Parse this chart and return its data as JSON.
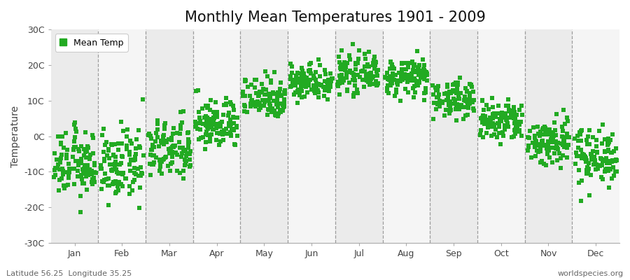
{
  "title": "Monthly Mean Temperatures 1901 - 2009",
  "ylabel": "Temperature",
  "dot_color": "#22AA22",
  "background_color": "#FFFFFF",
  "band_color_odd": "#EBEBEB",
  "band_color_even": "#F5F5F5",
  "ylim": [
    -30,
    30
  ],
  "ytick_labels": [
    "-30C",
    "-20C",
    "-10C",
    "0C",
    "10C",
    "20C",
    "30C"
  ],
  "ytick_values": [
    -30,
    -20,
    -10,
    0,
    10,
    20,
    30
  ],
  "month_labels": [
    "Jan",
    "Feb",
    "Mar",
    "Apr",
    "May",
    "Jun",
    "Jul",
    "Aug",
    "Sep",
    "Oct",
    "Nov",
    "Dec"
  ],
  "month_means": [
    -8.0,
    -8.5,
    -4.0,
    3.5,
    11.0,
    15.5,
    17.5,
    16.5,
    10.5,
    4.0,
    -1.5,
    -5.5
  ],
  "month_stds": [
    4.5,
    4.8,
    4.2,
    3.5,
    3.0,
    2.5,
    2.5,
    2.5,
    2.5,
    3.0,
    3.5,
    4.0
  ],
  "n_years": 109,
  "legend_label": "Mean Temp",
  "footer_left": "Latitude 56.25  Longitude 35.25",
  "footer_right": "worldspecies.org",
  "title_fontsize": 15,
  "label_fontsize": 9,
  "footer_fontsize": 8,
  "dot_size": 18,
  "dot_marker": "s",
  "dot_alpha": 1.0
}
